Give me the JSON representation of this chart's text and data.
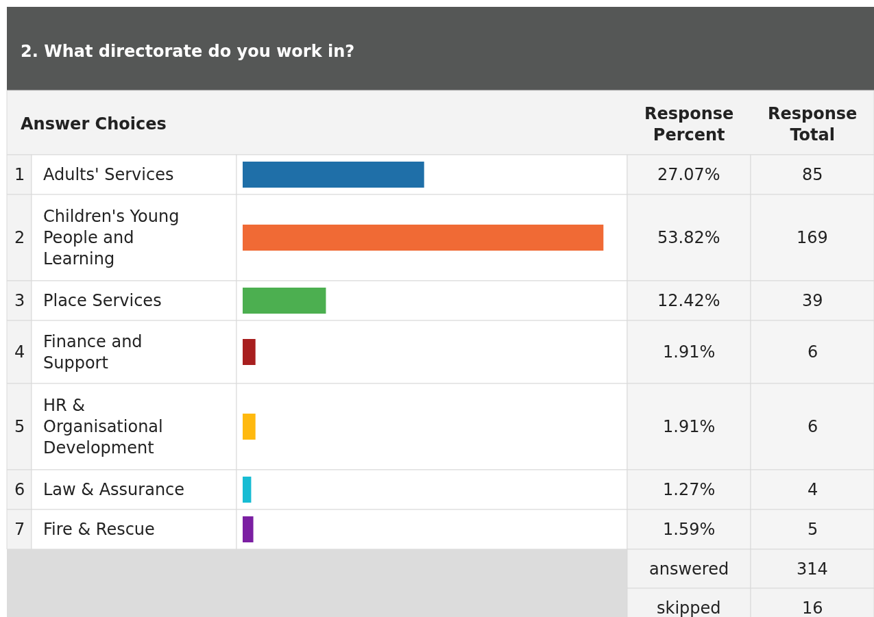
{
  "chart_data": {
    "type": "bar",
    "orientation": "horizontal",
    "title": "2. What directorate do you work in?",
    "categories": [
      "Adults' Services",
      "Children's Young People and Learning",
      "Place Services",
      "Finance and Support",
      "HR & Organisational Development",
      "Law & Assurance",
      "Fire & Rescue"
    ],
    "values": [
      27.07,
      53.82,
      12.42,
      1.91,
      1.91,
      1.27,
      1.59
    ],
    "value_labels": [
      "27.07%",
      "53.82%",
      "12.42%",
      "1.91%",
      "1.91%",
      "1.27%",
      "1.59%"
    ],
    "colors": [
      "#1f6fa8",
      "#f06a35",
      "#4caf50",
      "#a81f1f",
      "#ffb90f",
      "#17bcd3",
      "#7b1fa2"
    ],
    "tick_labels": false,
    "annotations": [
      "Answer Choices",
      "Response Percent",
      "Response Total",
      "answered",
      "314",
      "skipped",
      "16",
      "1",
      "2",
      "3",
      "4",
      "5",
      "6",
      "7",
      "85",
      "169",
      "39",
      "6",
      "6",
      "4",
      "5"
    ]
  }
}
